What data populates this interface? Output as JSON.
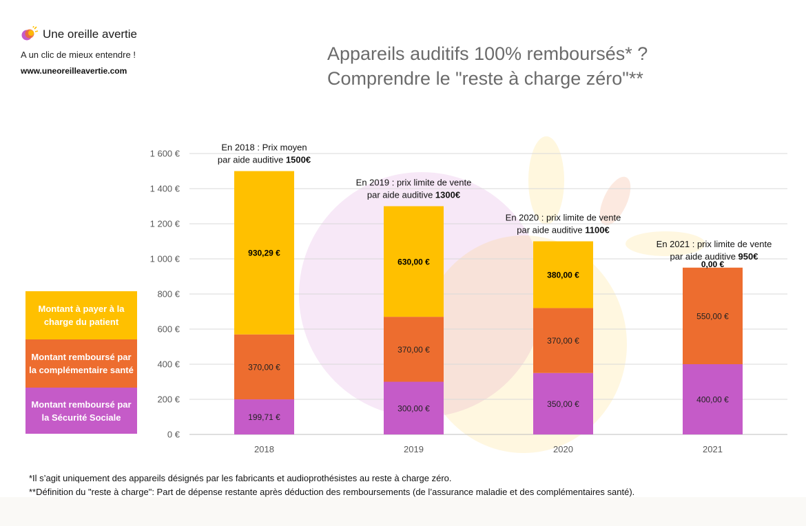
{
  "brand": {
    "name": "Une oreille avertie",
    "tagline": "A un clic de mieux entendre !",
    "url": "www.uneoreilleavertie.com"
  },
  "title_lines": [
    "Appareils auditifs 100% remboursés* ?",
    "Comprendre le \"reste à charge zéro\"**"
  ],
  "colors": {
    "patient": "#FFC000",
    "complementaire": "#ED6D2F",
    "secu": "#C55BC8",
    "grid": "#d9d9d9",
    "axis_text": "#595959"
  },
  "chart_data": {
    "type": "bar",
    "stacked": true,
    "categories": [
      "2018",
      "2019",
      "2020",
      "2021"
    ],
    "ylim": [
      0,
      1600
    ],
    "yticks": [
      0,
      200,
      400,
      600,
      800,
      1000,
      1200,
      1400,
      1600
    ],
    "ytick_labels": [
      "0 €",
      "200 €",
      "400 €",
      "600 €",
      "800 €",
      "1 000 €",
      "1 200 €",
      "1 400 €",
      "1 600 €"
    ],
    "grid": true,
    "legend_position": "left",
    "series": [
      {
        "name": "Montant remboursé par la Sécurité Sociale",
        "key": "secu",
        "values": [
          199.71,
          300,
          350,
          400
        ],
        "labels": [
          "199,71 €",
          "300,00 €",
          "350,00 €",
          "400,00 €"
        ]
      },
      {
        "name": "Montant remboursé par la complémentaire santé",
        "key": "complementaire",
        "values": [
          370,
          370,
          370,
          550
        ],
        "labels": [
          "370,00 €",
          "370,00 €",
          "370,00 €",
          "550,00 €"
        ]
      },
      {
        "name": "Montant à payer à la charge du patient",
        "key": "patient",
        "values": [
          930.29,
          630,
          380,
          0
        ],
        "labels": [
          "930,29 €",
          "630,00 €",
          "380,00 €",
          "0,00 €"
        ]
      }
    ],
    "annotations": [
      {
        "line1": "En 2018 : Prix moyen",
        "line2": "par aide auditive ",
        "bold": "1500€"
      },
      {
        "line1": "En 2019 : prix limite de vente",
        "line2": "par aide auditive ",
        "bold": "1300€"
      },
      {
        "line1": "En 2020 : prix limite de vente",
        "line2": "par aide auditive ",
        "bold": "1100€"
      },
      {
        "line1": "En 2021 : prix limite de vente",
        "line2": "par aide auditive ",
        "bold": "950€"
      }
    ]
  },
  "legend": [
    {
      "label": "Montant à payer à la charge du patient",
      "color": "#FFC000"
    },
    {
      "label": "Montant remboursé par la complémentaire santé",
      "color": "#ED6D2F"
    },
    {
      "label": "Montant remboursé par la Sécurité Sociale",
      "color": "#C55BC8"
    }
  ],
  "footnotes": [
    "*Il s’agit uniquement des appareils désignés par les fabricants et audioprothésistes au reste à charge zéro.",
    "**Définition du \"reste à charge\": Part de dépense restante après déduction des remboursements (de l’assurance maladie et des complémentaires santé)."
  ]
}
